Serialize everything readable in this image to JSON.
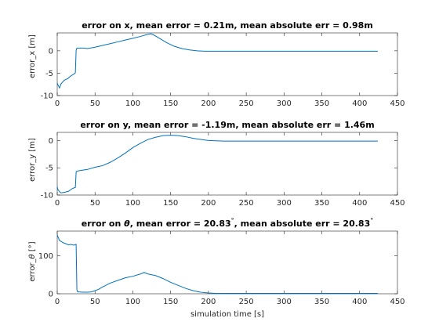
{
  "window": {
    "background": "#ffffff"
  },
  "chart_data": [
    {
      "type": "line",
      "title": "error on x, mean error = 0.21m, mean absolute err = 0.98m",
      "ylabel": "error_x [m]",
      "xlabel": "",
      "xlim": [
        0,
        450
      ],
      "ylim": [
        -10,
        4
      ],
      "xticks": [
        0,
        50,
        100,
        150,
        200,
        250,
        300,
        350,
        400,
        450
      ],
      "yticks": [
        -10,
        -5,
        0
      ],
      "color": "#0072bd",
      "series": [
        {
          "x": [
            0,
            1,
            3,
            5,
            8,
            10,
            14,
            18,
            22,
            24,
            25,
            26,
            27,
            30,
            35,
            40,
            50,
            60,
            70,
            80,
            90,
            100,
            110,
            118,
            124,
            128,
            135,
            145,
            155,
            165,
            175,
            185,
            195,
            210,
            230,
            250,
            300,
            350,
            400,
            424
          ],
          "y": [
            -7.2,
            -7.6,
            -8.3,
            -7.4,
            -6.8,
            -6.5,
            -6.2,
            -5.6,
            -5.2,
            -4.9,
            0.1,
            0.6,
            0.6,
            0.6,
            0.6,
            0.5,
            0.8,
            1.2,
            1.6,
            2.0,
            2.4,
            2.8,
            3.2,
            3.6,
            3.8,
            3.5,
            2.8,
            1.8,
            1.0,
            0.5,
            0.2,
            0.0,
            -0.1,
            -0.1,
            -0.1,
            -0.1,
            -0.1,
            -0.1,
            -0.1,
            -0.1
          ]
        }
      ]
    },
    {
      "type": "line",
      "title": "error on y, mean error = -1.19m, mean absolute err = 1.46m",
      "ylabel": "error_y [m]",
      "xlabel": "",
      "xlim": [
        0,
        450
      ],
      "ylim": [
        -10,
        1.5
      ],
      "xticks": [
        0,
        50,
        100,
        150,
        200,
        250,
        300,
        350,
        400,
        450
      ],
      "yticks": [
        -10,
        -5,
        0
      ],
      "color": "#0072bd",
      "series": [
        {
          "x": [
            0,
            1,
            3,
            5,
            10,
            15,
            20,
            24,
            25,
            26,
            27,
            30,
            40,
            50,
            60,
            70,
            80,
            90,
            100,
            110,
            120,
            130,
            140,
            150,
            160,
            170,
            180,
            190,
            200,
            220,
            250,
            300,
            350,
            400,
            424
          ],
          "y": [
            -8.5,
            -9.0,
            -9.4,
            -9.6,
            -9.5,
            -9.3,
            -8.8,
            -8.6,
            -5.8,
            -5.6,
            -5.6,
            -5.5,
            -5.3,
            -4.9,
            -4.6,
            -4.0,
            -3.2,
            -2.3,
            -1.3,
            -0.5,
            0.2,
            0.6,
            0.9,
            1.0,
            0.9,
            0.7,
            0.4,
            0.2,
            0.0,
            -0.1,
            -0.1,
            -0.1,
            -0.1,
            -0.1,
            -0.1
          ]
        }
      ]
    },
    {
      "type": "line",
      "title": "error on θ, mean error = 20.83°, mean absolute err = 20.83°",
      "title_parts": [
        "error on ",
        "θ",
        ", mean error = 20.83",
        "°",
        ", mean absolute err = 20.83",
        "°"
      ],
      "ylabel": "error_θ [°]",
      "ylabel_parts": [
        "error_",
        "θ",
        " [°]"
      ],
      "xlabel": "simulation time [s]",
      "xlim": [
        0,
        450
      ],
      "ylim": [
        0,
        165
      ],
      "xticks": [
        0,
        50,
        100,
        150,
        200,
        250,
        300,
        350,
        400,
        450
      ],
      "yticks": [
        0,
        100
      ],
      "color": "#0072bd",
      "series": [
        {
          "x": [
            0,
            1,
            3,
            5,
            8,
            10,
            12,
            15,
            18,
            22,
            25,
            26,
            27,
            28,
            35,
            40,
            45,
            50,
            55,
            60,
            70,
            80,
            90,
            100,
            110,
            115,
            120,
            125,
            130,
            140,
            150,
            160,
            170,
            180,
            190,
            200,
            210,
            230,
            260,
            300,
            350,
            400,
            424
          ],
          "y": [
            155,
            150,
            140,
            138,
            134,
            133,
            131,
            129,
            130,
            128,
            130,
            10,
            5,
            5,
            4,
            4,
            5,
            8,
            12,
            18,
            28,
            35,
            42,
            46,
            52,
            56,
            52,
            50,
            48,
            40,
            30,
            22,
            14,
            8,
            4,
            2,
            1,
            1,
            1,
            1,
            1,
            1,
            1
          ]
        }
      ]
    }
  ]
}
